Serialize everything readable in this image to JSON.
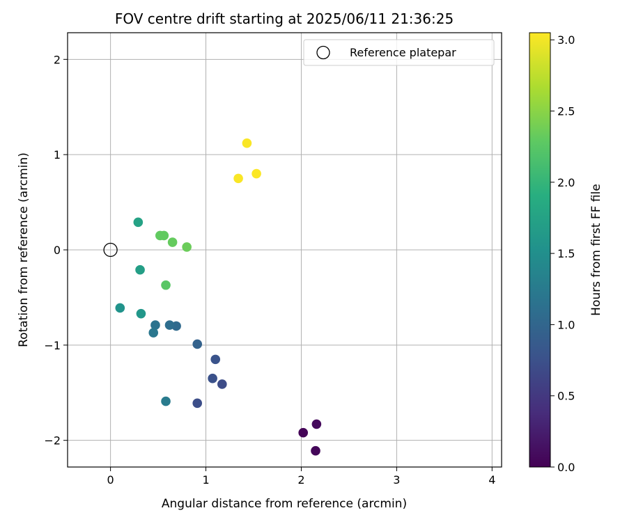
{
  "chart_data": {
    "type": "scatter",
    "title": "FOV centre drift starting at 2025/06/11 21:36:25",
    "xlabel": "Angular distance from reference (arcmin)",
    "ylabel": "Rotation from reference (arcmin)",
    "xlim": [
      -0.45,
      4.1
    ],
    "ylim": [
      -2.28,
      2.28
    ],
    "xticks": [
      0,
      1,
      2,
      3,
      4
    ],
    "yticks": [
      -2,
      -1,
      0,
      1,
      2
    ],
    "xtick_labels": [
      "0",
      "1",
      "2",
      "3",
      "4"
    ],
    "ytick_labels": [
      "−2",
      "−1",
      "0",
      "1",
      "2"
    ],
    "grid": true,
    "legend": {
      "placement": "top-right",
      "label": "Reference platepar"
    },
    "reference_point": {
      "x": 0,
      "y": 0
    },
    "colorbar": {
      "label": "Hours from first FF file",
      "colormap": "viridis",
      "range": [
        0,
        3.05
      ],
      "ticks": [
        0,
        0.5,
        1,
        1.5,
        2,
        2.5,
        3
      ],
      "tick_labels": [
        "0.0",
        "0.5",
        "1.0",
        "1.5",
        "2.0",
        "2.5",
        "3.0"
      ]
    },
    "points": [
      {
        "x": 2.02,
        "y": -1.92,
        "hours": 0.03
      },
      {
        "x": 2.15,
        "y": -2.11,
        "hours": 0.05
      },
      {
        "x": 2.16,
        "y": -1.83,
        "hours": 0.08
      },
      {
        "x": 1.17,
        "y": -1.41,
        "hours": 0.7
      },
      {
        "x": 1.07,
        "y": -1.35,
        "hours": 0.75
      },
      {
        "x": 0.91,
        "y": -1.61,
        "hours": 0.72
      },
      {
        "x": 1.1,
        "y": -1.15,
        "hours": 0.78
      },
      {
        "x": 0.91,
        "y": -0.99,
        "hours": 0.95
      },
      {
        "x": 0.69,
        "y": -0.8,
        "hours": 1.05
      },
      {
        "x": 0.62,
        "y": -0.79,
        "hours": 1.1
      },
      {
        "x": 0.47,
        "y": -0.79,
        "hours": 1.15
      },
      {
        "x": 0.45,
        "y": -0.87,
        "hours": 1.2
      },
      {
        "x": 0.58,
        "y": -1.59,
        "hours": 1.25
      },
      {
        "x": 0.1,
        "y": -0.61,
        "hours": 1.55
      },
      {
        "x": 0.32,
        "y": -0.67,
        "hours": 1.6
      },
      {
        "x": 0.31,
        "y": -0.21,
        "hours": 1.7
      },
      {
        "x": 0.29,
        "y": 0.29,
        "hours": 1.75
      },
      {
        "x": 0.58,
        "y": -0.37,
        "hours": 2.25
      },
      {
        "x": 0.52,
        "y": 0.15,
        "hours": 2.3
      },
      {
        "x": 0.56,
        "y": 0.15,
        "hours": 2.3
      },
      {
        "x": 0.65,
        "y": 0.08,
        "hours": 2.32
      },
      {
        "x": 0.8,
        "y": 0.03,
        "hours": 2.35
      },
      {
        "x": 1.43,
        "y": 1.12,
        "hours": 3.03
      },
      {
        "x": 1.34,
        "y": 0.75,
        "hours": 3.03
      },
      {
        "x": 1.53,
        "y": 0.8,
        "hours": 3.04
      }
    ]
  }
}
